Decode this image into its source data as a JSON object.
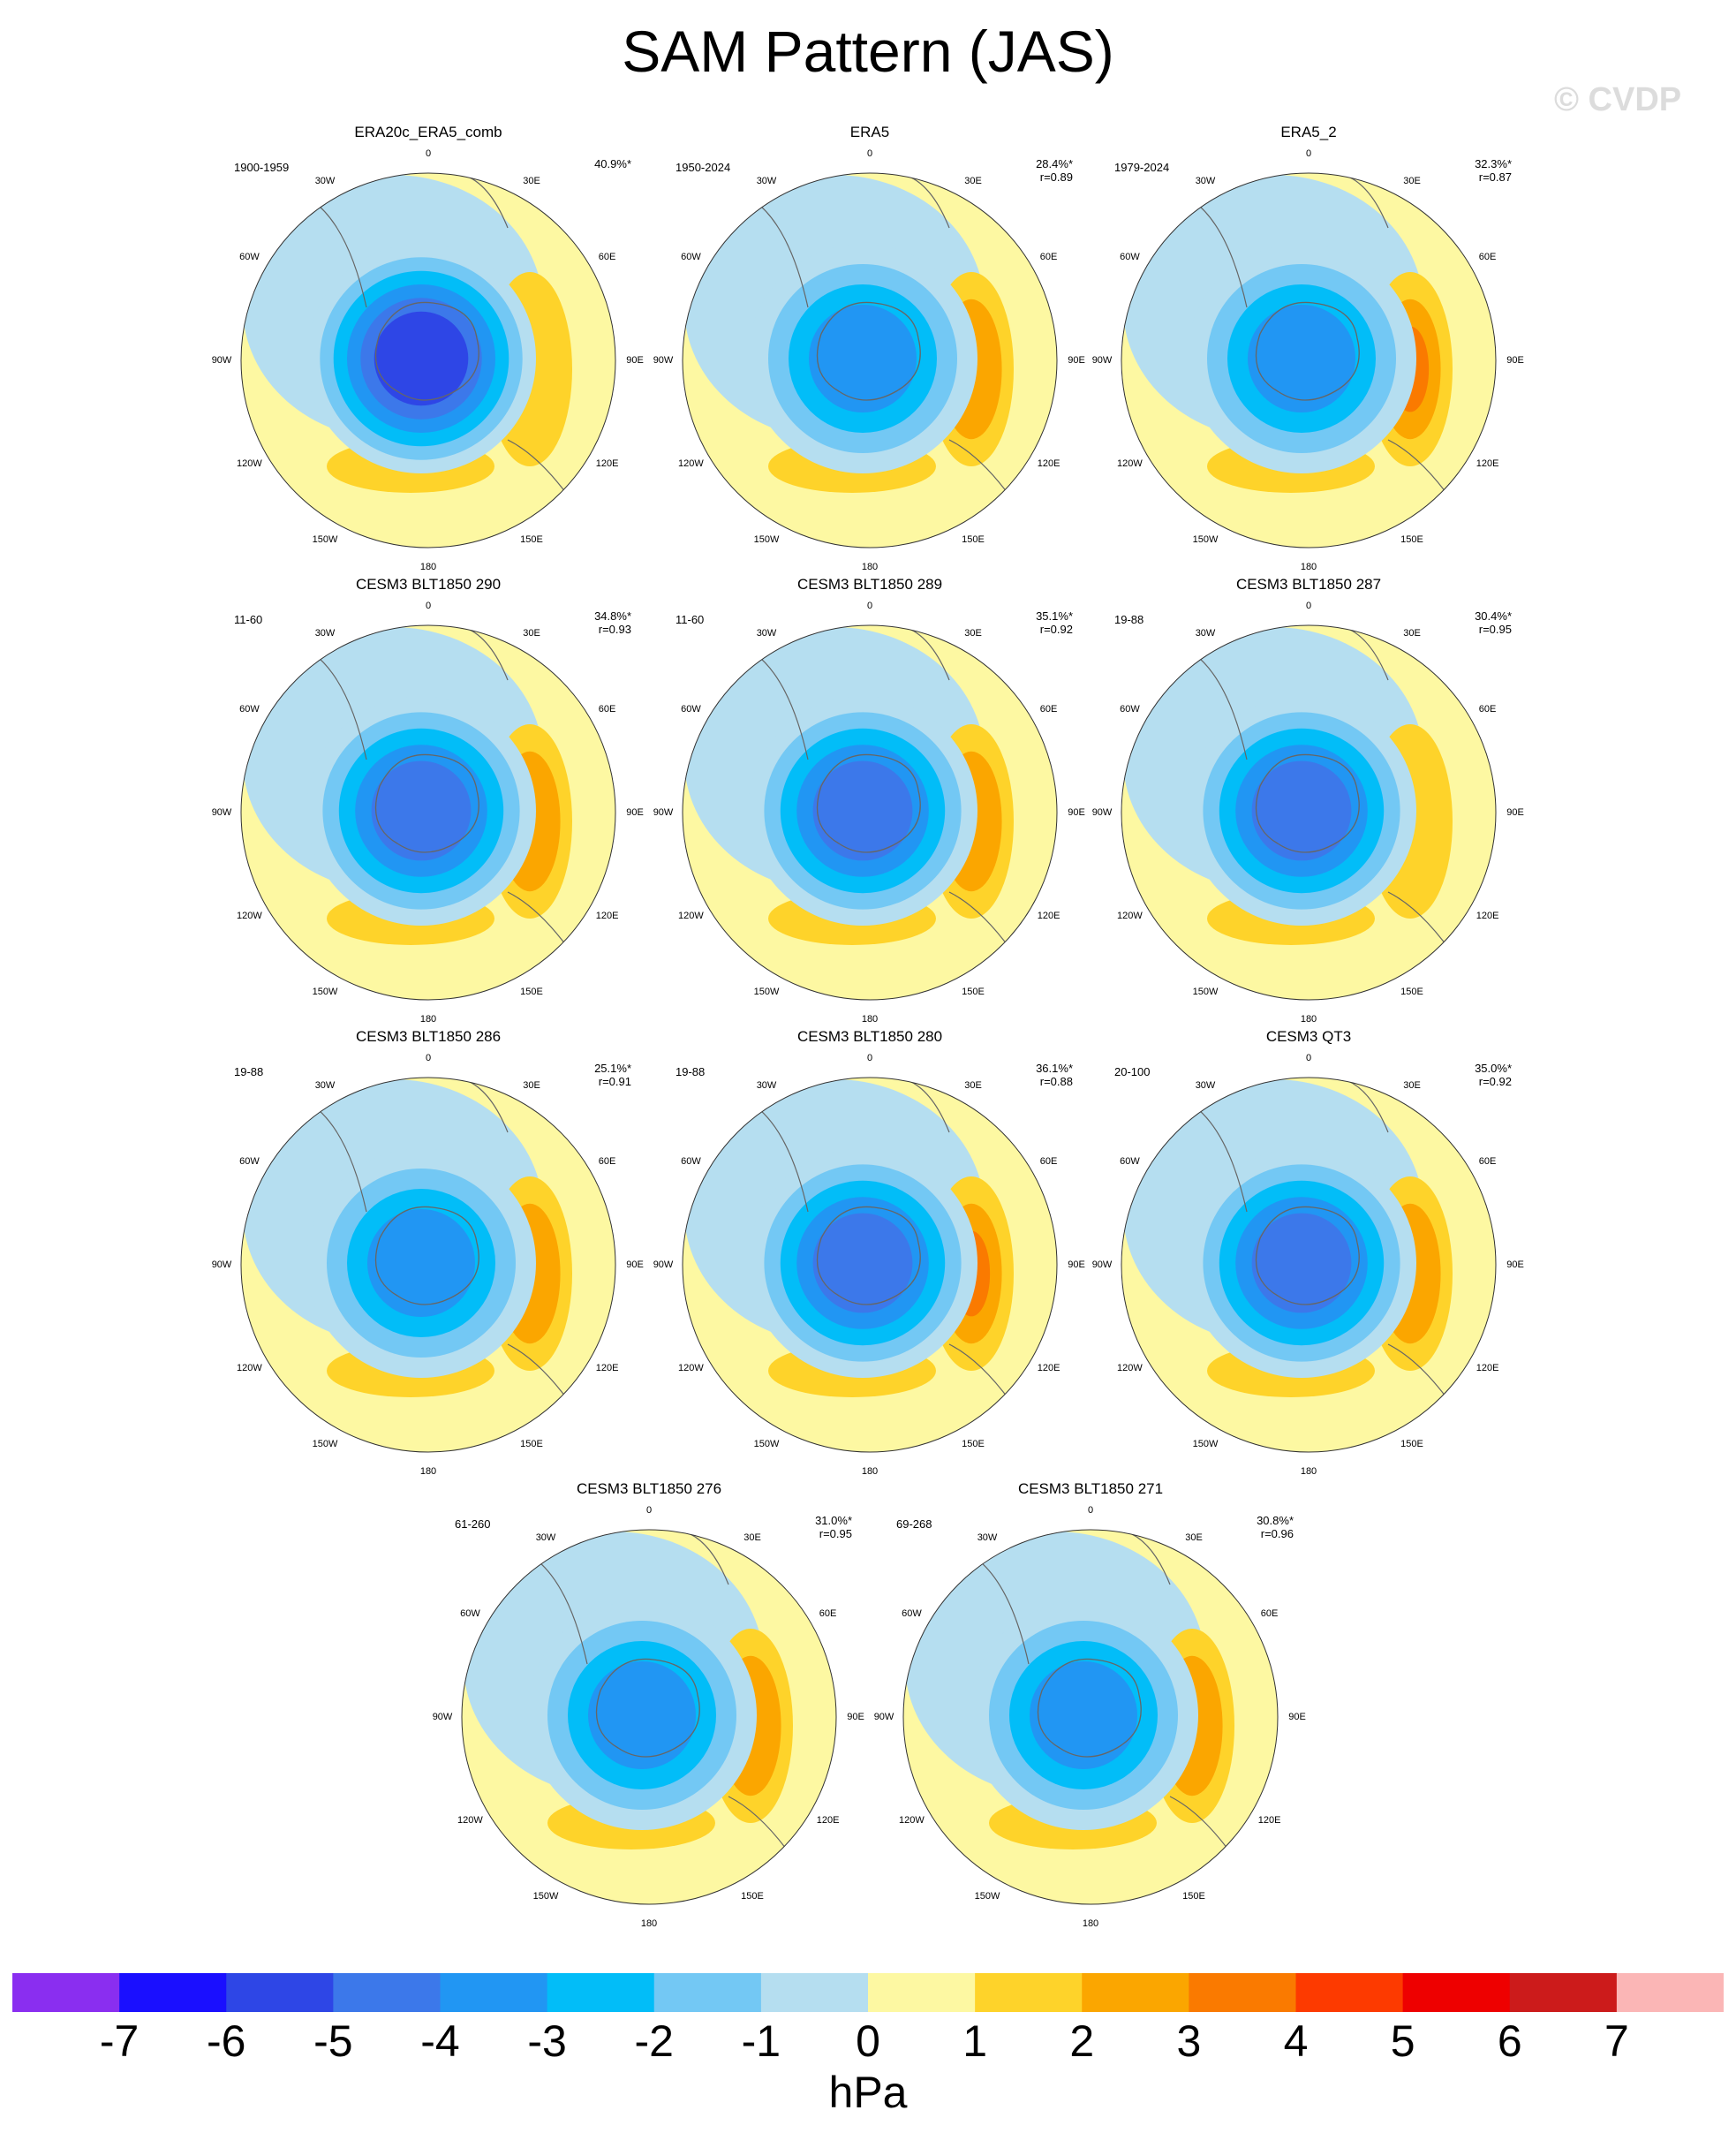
{
  "title": "SAM Pattern (JAS)",
  "watermark": "© CVDP",
  "colors": {
    "levels": [
      "#8a2ef0",
      "#1a0fff",
      "#2e46e6",
      "#3c78ea",
      "#2196f3",
      "#02bdf8",
      "#73c8f4",
      "#b5def0",
      "#fdf8a2",
      "#fed32a",
      "#fba600",
      "#fa7a00",
      "#fd3a00",
      "#ee0000",
      "#cc1b1b",
      "#fbb6b6"
    ],
    "land": "#666666"
  },
  "chart_data": {
    "type": "heatmap",
    "units": "hPa",
    "colorbar_ticks": [
      "-7",
      "-6",
      "-5",
      "-4",
      "-3",
      "-2",
      "-1",
      "0",
      "1",
      "2",
      "3",
      "4",
      "5",
      "6",
      "7"
    ],
    "projection_labels": [
      "0",
      "30E",
      "60E",
      "90E",
      "120E",
      "150E",
      "180",
      "150W",
      "120W",
      "90W",
      "60W",
      "30W"
    ],
    "panels": [
      {
        "name": "ERA20c_ERA5_comb",
        "period": "1900-1959",
        "variance_pct": "40.9%*",
        "r": "",
        "min_hpa": -6,
        "max_hpa": 1
      },
      {
        "name": "ERA5",
        "period": "1950-2024",
        "variance_pct": "28.4%*",
        "r": "r=0.89",
        "min_hpa": -4,
        "max_hpa": 2
      },
      {
        "name": "ERA5_2",
        "period": "1979-2024",
        "variance_pct": "32.3%*",
        "r": "r=0.87",
        "min_hpa": -4,
        "max_hpa": 3
      },
      {
        "name": "CESM3 BLT1850 290",
        "period": "11-60",
        "variance_pct": "34.8%*",
        "r": "r=0.93",
        "min_hpa": -5,
        "max_hpa": 2
      },
      {
        "name": "CESM3 BLT1850 289",
        "period": "11-60",
        "variance_pct": "35.1%*",
        "r": "r=0.92",
        "min_hpa": -5,
        "max_hpa": 2
      },
      {
        "name": "CESM3 BLT1850 287",
        "period": "19-88",
        "variance_pct": "30.4%*",
        "r": "r=0.95",
        "min_hpa": -5,
        "max_hpa": 1
      },
      {
        "name": "CESM3 BLT1850 286",
        "period": "19-88",
        "variance_pct": "25.1%*",
        "r": "r=0.91",
        "min_hpa": -4,
        "max_hpa": 2
      },
      {
        "name": "CESM3 BLT1850 280",
        "period": "19-88",
        "variance_pct": "36.1%*",
        "r": "r=0.88",
        "min_hpa": -5,
        "max_hpa": 3
      },
      {
        "name": "CESM3 QT3",
        "period": "20-100",
        "variance_pct": "35.0%*",
        "r": "r=0.92",
        "min_hpa": -5,
        "max_hpa": 2
      },
      {
        "name": "CESM3 BLT1850 276",
        "period": "61-260",
        "variance_pct": "31.0%*",
        "r": "r=0.95",
        "min_hpa": -4,
        "max_hpa": 2
      },
      {
        "name": "CESM3 BLT1850 271",
        "period": "69-268",
        "variance_pct": "30.8%*",
        "r": "r=0.96",
        "min_hpa": -4,
        "max_hpa": 2
      }
    ]
  }
}
